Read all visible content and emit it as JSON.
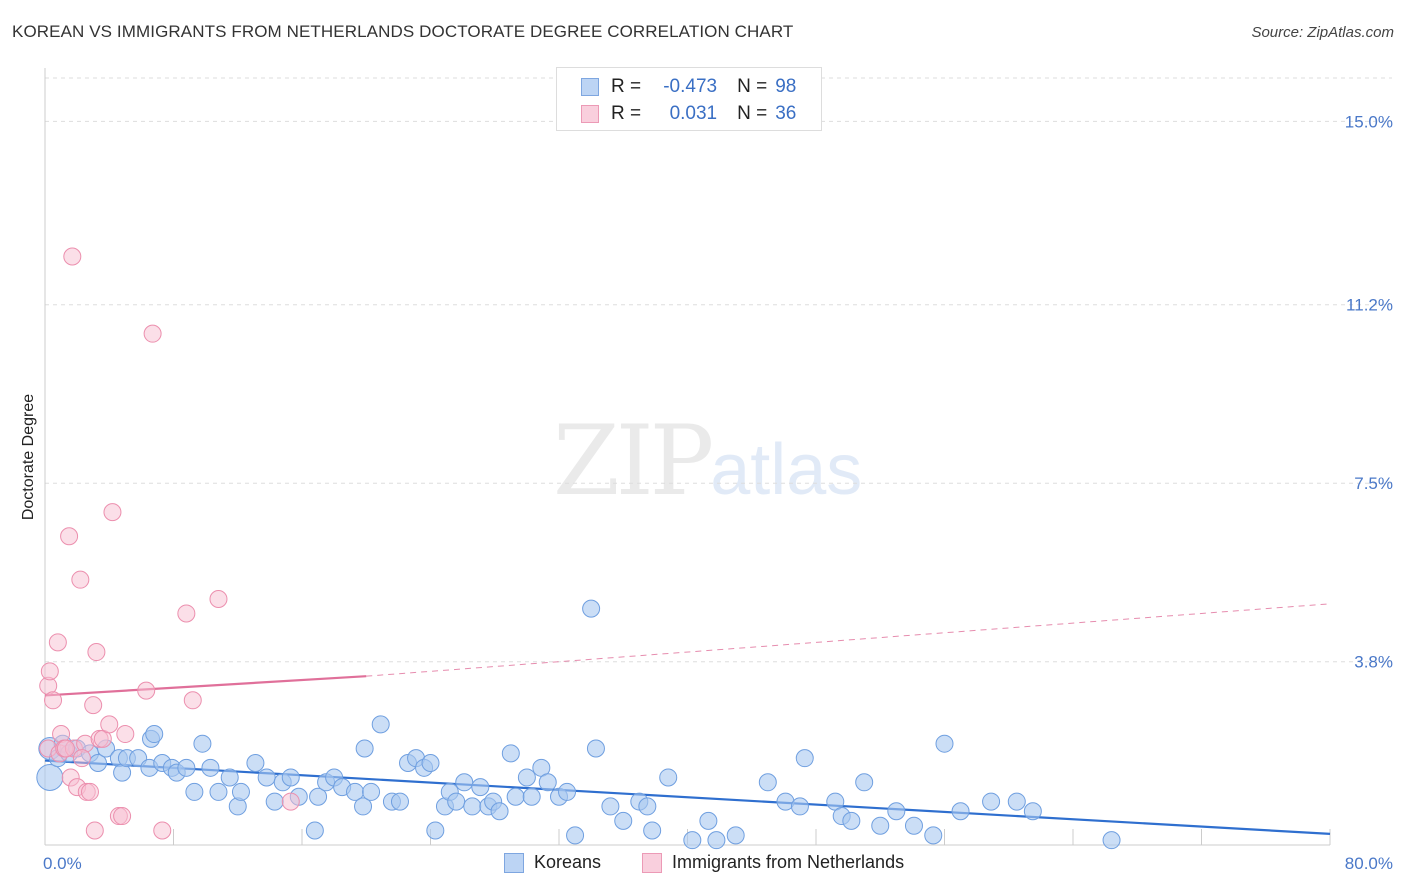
{
  "title": "KOREAN VS IMMIGRANTS FROM NETHERLANDS DOCTORATE DEGREE CORRELATION CHART",
  "source": "Source: ZipAtlas.com",
  "watermark": {
    "zip": "ZIP",
    "atlas": "atlas"
  },
  "legend_top": {
    "rows": [
      {
        "r_label": "R =",
        "r_value": "-0.473",
        "n_label": "N =",
        "n_value": "98"
      },
      {
        "r_label": "R =",
        "r_value": "0.031",
        "n_label": "N =",
        "n_value": "36"
      }
    ]
  },
  "legend_bottom": {
    "series1": "Koreans",
    "series2": "Immigrants from Netherlands"
  },
  "colors": {
    "blue_fill": "#a9c8f0",
    "blue_stroke": "#6f9fe0",
    "blue_line": "#2f6fcf",
    "pink_fill": "#f7c0d2",
    "pink_stroke": "#ec8fae",
    "pink_line": "#e0709a",
    "grid": "#dddddd",
    "tick": "#4a78c8"
  },
  "chart_data": {
    "type": "scatter",
    "title": "KOREAN VS IMMIGRANTS FROM NETHERLANDS DOCTORATE DEGREE CORRELATION CHART",
    "xlabel": "",
    "ylabel": "Doctorate Degree",
    "xlim": [
      0,
      80
    ],
    "ylim": [
      0,
      15.9
    ],
    "x_tick_labels": [
      "0.0%",
      "80.0%"
    ],
    "y_ticks": [
      3.8,
      7.5,
      11.2,
      15.0
    ],
    "y_tick_labels": [
      "3.8%",
      "7.5%",
      "11.2%",
      "15.0%"
    ],
    "series": [
      {
        "name": "Koreans",
        "R": -0.473,
        "N": 98,
        "trend": {
          "x": [
            0,
            80
          ],
          "y": [
            1.75,
            0.23
          ]
        },
        "points": [
          [
            0.3,
            2.0
          ],
          [
            0.3,
            1.4
          ],
          [
            0.8,
            1.8
          ],
          [
            1.1,
            2.1
          ],
          [
            1.5,
            1.9
          ],
          [
            2.0,
            2.0
          ],
          [
            2.8,
            1.9
          ],
          [
            3.3,
            1.7
          ],
          [
            3.8,
            2.0
          ],
          [
            4.6,
            1.8
          ],
          [
            4.8,
            1.5
          ],
          [
            5.1,
            1.8
          ],
          [
            5.8,
            1.8
          ],
          [
            6.5,
            1.6
          ],
          [
            6.6,
            2.2
          ],
          [
            6.8,
            2.3
          ],
          [
            7.3,
            1.7
          ],
          [
            7.9,
            1.6
          ],
          [
            8.2,
            1.5
          ],
          [
            8.8,
            1.6
          ],
          [
            9.3,
            1.1
          ],
          [
            9.8,
            2.1
          ],
          [
            10.3,
            1.6
          ],
          [
            10.8,
            1.1
          ],
          [
            11.5,
            1.4
          ],
          [
            12.0,
            0.8
          ],
          [
            12.2,
            1.1
          ],
          [
            13.1,
            1.7
          ],
          [
            13.8,
            1.4
          ],
          [
            14.3,
            0.9
          ],
          [
            14.8,
            1.3
          ],
          [
            15.3,
            1.4
          ],
          [
            15.8,
            1.0
          ],
          [
            17.0,
            1.0
          ],
          [
            16.8,
            0.3
          ],
          [
            17.5,
            1.3
          ],
          [
            18.0,
            1.4
          ],
          [
            18.5,
            1.2
          ],
          [
            19.3,
            1.1
          ],
          [
            19.8,
            0.8
          ],
          [
            19.9,
            2.0
          ],
          [
            20.3,
            1.1
          ],
          [
            20.9,
            2.5
          ],
          [
            21.6,
            0.9
          ],
          [
            22.1,
            0.9
          ],
          [
            22.6,
            1.7
          ],
          [
            23.1,
            1.8
          ],
          [
            23.6,
            1.6
          ],
          [
            24.0,
            1.7
          ],
          [
            24.3,
            0.3
          ],
          [
            24.9,
            0.8
          ],
          [
            25.2,
            1.1
          ],
          [
            25.6,
            0.9
          ],
          [
            26.1,
            1.3
          ],
          [
            26.6,
            0.8
          ],
          [
            27.1,
            1.2
          ],
          [
            27.6,
            0.8
          ],
          [
            27.9,
            0.9
          ],
          [
            28.3,
            0.7
          ],
          [
            29.0,
            1.9
          ],
          [
            29.3,
            1.0
          ],
          [
            30.0,
            1.4
          ],
          [
            30.3,
            1.0
          ],
          [
            30.9,
            1.6
          ],
          [
            31.3,
            1.3
          ],
          [
            32.0,
            1.0
          ],
          [
            32.5,
            1.1
          ],
          [
            33.0,
            0.2
          ],
          [
            34.0,
            4.9
          ],
          [
            34.3,
            2.0
          ],
          [
            35.2,
            0.8
          ],
          [
            36.0,
            0.5
          ],
          [
            37.0,
            0.9
          ],
          [
            37.5,
            0.8
          ],
          [
            37.8,
            0.3
          ],
          [
            38.8,
            1.4
          ],
          [
            40.3,
            0.1
          ],
          [
            41.3,
            0.5
          ],
          [
            41.8,
            0.1
          ],
          [
            43.0,
            0.2
          ],
          [
            45.0,
            1.3
          ],
          [
            46.1,
            0.9
          ],
          [
            47.0,
            0.8
          ],
          [
            47.3,
            1.8
          ],
          [
            49.2,
            0.9
          ],
          [
            49.6,
            0.6
          ],
          [
            50.2,
            0.5
          ],
          [
            51.0,
            1.3
          ],
          [
            52.0,
            0.4
          ],
          [
            53.0,
            0.7
          ],
          [
            54.1,
            0.4
          ],
          [
            55.3,
            0.2
          ],
          [
            56.0,
            2.1
          ],
          [
            57.0,
            0.7
          ],
          [
            58.9,
            0.9
          ],
          [
            60.5,
            0.9
          ],
          [
            61.5,
            0.7
          ],
          [
            66.4,
            0.1
          ]
        ]
      },
      {
        "name": "Immigrants from Netherlands",
        "R": 0.031,
        "N": 36,
        "trend": {
          "x": [
            0,
            20
          ],
          "y": [
            3.1,
            3.5
          ]
        },
        "trend_extension": {
          "x": [
            20,
            80
          ],
          "y": [
            3.5,
            5.0
          ]
        },
        "points": [
          [
            0.2,
            2.0
          ],
          [
            0.2,
            3.3
          ],
          [
            0.3,
            3.6
          ],
          [
            0.5,
            3.0
          ],
          [
            0.8,
            4.2
          ],
          [
            0.9,
            1.9
          ],
          [
            1.0,
            2.3
          ],
          [
            1.2,
            2.0
          ],
          [
            1.5,
            6.4
          ],
          [
            1.6,
            1.4
          ],
          [
            1.7,
            12.2
          ],
          [
            1.8,
            2.0
          ],
          [
            2.0,
            1.2
          ],
          [
            2.2,
            5.5
          ],
          [
            2.5,
            2.1
          ],
          [
            2.6,
            1.1
          ],
          [
            2.8,
            1.1
          ],
          [
            3.0,
            2.9
          ],
          [
            3.1,
            0.3
          ],
          [
            3.2,
            4.0
          ],
          [
            3.4,
            2.2
          ],
          [
            3.6,
            2.2
          ],
          [
            4.0,
            2.5
          ],
          [
            4.2,
            6.9
          ],
          [
            4.6,
            0.6
          ],
          [
            4.8,
            0.6
          ],
          [
            5.0,
            2.3
          ],
          [
            6.3,
            3.2
          ],
          [
            6.7,
            10.6
          ],
          [
            7.3,
            0.3
          ],
          [
            8.8,
            4.8
          ],
          [
            9.2,
            3.0
          ],
          [
            10.8,
            5.1
          ],
          [
            15.3,
            0.9
          ],
          [
            1.3,
            2.0
          ],
          [
            2.3,
            1.8
          ]
        ]
      }
    ]
  }
}
